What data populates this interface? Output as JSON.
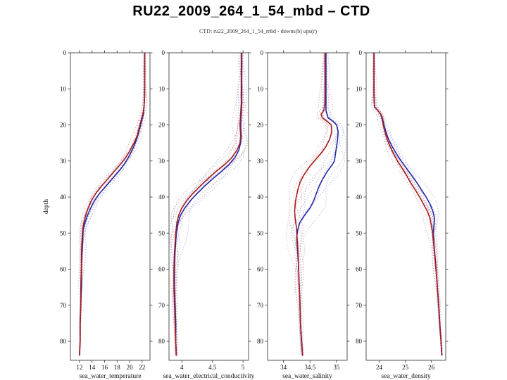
{
  "figure": {
    "title": "RU22_2009_264_1_54_mbd – CTD",
    "subtitle": "CTD: ru22_2009_264_1_54_mbd - downs(b) ups(r)"
  },
  "colors": {
    "up_red": "#a51c1c",
    "down_blue": "#2426a8",
    "ensemble_red": "#dc8f8f",
    "ensemble_blue": "#8f9fd8",
    "axis": "#444444",
    "text": "#111111"
  },
  "chart_data": {
    "type": "line",
    "title": "CTD: ru22_2009_264_1_54_mbd - downs(b) ups(r)",
    "ylabel": "depth",
    "ylim": [
      0,
      85.3
    ],
    "y_inverted": true,
    "yticks": [
      0,
      10,
      20,
      30,
      40,
      50,
      60,
      70,
      80
    ],
    "legend": [
      {
        "name": "downs",
        "color_key": "down_blue"
      },
      {
        "name": "ups",
        "color_key": "up_red"
      }
    ],
    "charts": [
      {
        "id": "temperature",
        "xlabel": "sea_water_temperature",
        "xlim": [
          10.55,
          23.25
        ],
        "xticks": [
          12,
          14,
          16,
          18,
          20,
          22
        ],
        "ensemble_spread": 0.55,
        "series": {
          "ups_r": [
            [
              0,
              22.4
            ],
            [
              6,
              22.4
            ],
            [
              12,
              22.4
            ],
            [
              15,
              22.3
            ],
            [
              17,
              22.1
            ],
            [
              19,
              21.8
            ],
            [
              21,
              21.5
            ],
            [
              23,
              21.2
            ],
            [
              25,
              20.7
            ],
            [
              27,
              20.1
            ],
            [
              29,
              19.4
            ],
            [
              31,
              18.5
            ],
            [
              33,
              17.5
            ],
            [
              35,
              16.5
            ],
            [
              37,
              15.5
            ],
            [
              39,
              14.6
            ],
            [
              41,
              13.9
            ],
            [
              43,
              13.4
            ],
            [
              45,
              13.0
            ],
            [
              47,
              12.7
            ],
            [
              49,
              12.5
            ],
            [
              52,
              12.4
            ],
            [
              56,
              12.3
            ],
            [
              60,
              12.3
            ],
            [
              65,
              12.2
            ],
            [
              70,
              12.2
            ],
            [
              75,
              12.1
            ],
            [
              80,
              12.1
            ],
            [
              84,
              12.0
            ]
          ],
          "downs_b": [
            [
              0,
              22.4
            ],
            [
              6,
              22.4
            ],
            [
              12,
              22.4
            ],
            [
              15,
              22.3
            ],
            [
              17,
              22.2
            ],
            [
              19,
              21.9
            ],
            [
              21,
              21.6
            ],
            [
              23,
              21.3
            ],
            [
              25,
              20.9
            ],
            [
              27,
              20.4
            ],
            [
              29,
              19.8
            ],
            [
              31,
              19.1
            ],
            [
              33,
              18.2
            ],
            [
              35,
              17.2
            ],
            [
              37,
              16.2
            ],
            [
              39,
              15.2
            ],
            [
              41,
              14.4
            ],
            [
              43,
              13.8
            ],
            [
              45,
              13.3
            ],
            [
              47,
              12.9
            ],
            [
              49,
              12.6
            ],
            [
              52,
              12.5
            ],
            [
              56,
              12.4
            ],
            [
              60,
              12.3
            ],
            [
              65,
              12.3
            ],
            [
              70,
              12.2
            ],
            [
              75,
              12.1
            ],
            [
              80,
              12.1
            ],
            [
              84,
              12.0
            ]
          ]
        }
      },
      {
        "id": "conductivity",
        "xlabel": "sea_water_electrical_conductivity",
        "xlim": [
          3.79,
          5.09
        ],
        "xticks": [
          4,
          4.5,
          5
        ],
        "ensemble_spread": 0.13,
        "series": {
          "ups_r": [
            [
              0,
              4.97
            ],
            [
              8,
              4.97
            ],
            [
              14,
              4.97
            ],
            [
              17,
              4.96
            ],
            [
              20,
              4.95
            ],
            [
              23,
              4.96
            ],
            [
              25,
              4.95
            ],
            [
              27,
              4.9
            ],
            [
              29,
              4.82
            ],
            [
              31,
              4.7
            ],
            [
              33,
              4.55
            ],
            [
              35,
              4.42
            ],
            [
              37,
              4.3
            ],
            [
              39,
              4.18
            ],
            [
              41,
              4.08
            ],
            [
              43,
              4.0
            ],
            [
              45,
              3.95
            ],
            [
              47,
              3.92
            ],
            [
              50,
              3.9
            ],
            [
              55,
              3.88
            ],
            [
              60,
              3.87
            ],
            [
              65,
              3.87
            ],
            [
              70,
              3.88
            ],
            [
              75,
              3.89
            ],
            [
              80,
              3.9
            ],
            [
              84,
              3.91
            ]
          ],
          "downs_b": [
            [
              0,
              4.98
            ],
            [
              8,
              4.98
            ],
            [
              14,
              4.98
            ],
            [
              17,
              4.97
            ],
            [
              20,
              4.96
            ],
            [
              23,
              4.97
            ],
            [
              25,
              4.96
            ],
            [
              27,
              4.93
            ],
            [
              29,
              4.87
            ],
            [
              31,
              4.77
            ],
            [
              33,
              4.64
            ],
            [
              35,
              4.5
            ],
            [
              37,
              4.37
            ],
            [
              39,
              4.25
            ],
            [
              41,
              4.14
            ],
            [
              43,
              4.05
            ],
            [
              45,
              3.98
            ],
            [
              47,
              3.94
            ],
            [
              50,
              3.91
            ],
            [
              55,
              3.89
            ],
            [
              60,
              3.88
            ],
            [
              65,
              3.88
            ],
            [
              70,
              3.89
            ],
            [
              75,
              3.9
            ],
            [
              80,
              3.9
            ],
            [
              84,
              3.91
            ]
          ]
        }
      },
      {
        "id": "salinity",
        "xlabel": "sea_water_salinity",
        "xlim": [
          33.7,
          35.2
        ],
        "xticks": [
          34,
          34.5,
          35
        ],
        "ensemble_spread": 0.16,
        "series": {
          "ups_r": [
            [
              0,
              34.78
            ],
            [
              8,
              34.78
            ],
            [
              14,
              34.78
            ],
            [
              16,
              34.76
            ],
            [
              17,
              34.71
            ],
            [
              18,
              34.73
            ],
            [
              19,
              34.82
            ],
            [
              20,
              34.9
            ],
            [
              22,
              34.91
            ],
            [
              24,
              34.87
            ],
            [
              26,
              34.8
            ],
            [
              28,
              34.7
            ],
            [
              30,
              34.58
            ],
            [
              32,
              34.47
            ],
            [
              34,
              34.38
            ],
            [
              36,
              34.31
            ],
            [
              38,
              34.27
            ],
            [
              40,
              34.24
            ],
            [
              42,
              34.22
            ],
            [
              44,
              34.21
            ],
            [
              46,
              34.22
            ],
            [
              48,
              34.24
            ],
            [
              50,
              34.25
            ],
            [
              54,
              34.27
            ],
            [
              58,
              34.28
            ],
            [
              62,
              34.29
            ],
            [
              66,
              34.3
            ],
            [
              70,
              34.31
            ],
            [
              75,
              34.32
            ],
            [
              80,
              34.34
            ],
            [
              84,
              34.36
            ]
          ],
          "downs_b": [
            [
              0,
              34.8
            ],
            [
              8,
              34.8
            ],
            [
              14,
              34.8
            ],
            [
              16,
              34.8
            ],
            [
              18,
              34.84
            ],
            [
              19,
              34.93
            ],
            [
              20,
              35.0
            ],
            [
              22,
              35.03
            ],
            [
              24,
              35.02
            ],
            [
              26,
              35.0
            ],
            [
              28,
              34.98
            ],
            [
              30,
              34.96
            ],
            [
              31,
              34.92
            ],
            [
              33,
              34.82
            ],
            [
              35,
              34.74
            ],
            [
              37,
              34.67
            ],
            [
              39,
              34.62
            ],
            [
              41,
              34.57
            ],
            [
              43,
              34.5
            ],
            [
              45,
              34.4
            ],
            [
              47,
              34.31
            ],
            [
              49,
              34.27
            ],
            [
              51,
              34.25
            ],
            [
              54,
              34.26
            ],
            [
              58,
              34.28
            ],
            [
              62,
              34.29
            ],
            [
              66,
              34.3
            ],
            [
              70,
              34.31
            ],
            [
              75,
              34.32
            ],
            [
              80,
              34.34
            ],
            [
              84,
              34.36
            ]
          ]
        }
      },
      {
        "id": "density",
        "xlabel": "sea_water_density",
        "xlim": [
          23.5,
          26.55
        ],
        "xticks": [
          24,
          25,
          26
        ],
        "ensemble_spread": 0.16,
        "series": {
          "ups_r": [
            [
              0,
              23.8
            ],
            [
              6,
              23.8
            ],
            [
              12,
              23.8
            ],
            [
              15,
              23.82
            ],
            [
              16,
              23.95
            ],
            [
              17,
              24.05
            ],
            [
              18,
              24.1
            ],
            [
              20,
              24.15
            ],
            [
              22,
              24.22
            ],
            [
              24,
              24.3
            ],
            [
              26,
              24.42
            ],
            [
              28,
              24.55
            ],
            [
              30,
              24.7
            ],
            [
              32,
              24.88
            ],
            [
              34,
              25.05
            ],
            [
              36,
              25.2
            ],
            [
              38,
              25.38
            ],
            [
              40,
              25.55
            ],
            [
              42,
              25.7
            ],
            [
              44,
              25.85
            ],
            [
              46,
              25.95
            ],
            [
              48,
              26.0
            ],
            [
              50,
              26.05
            ],
            [
              54,
              26.1
            ],
            [
              58,
              26.15
            ],
            [
              62,
              26.2
            ],
            [
              66,
              26.24
            ],
            [
              70,
              26.28
            ],
            [
              75,
              26.32
            ],
            [
              80,
              26.37
            ],
            [
              84,
              26.4
            ]
          ],
          "downs_b": [
            [
              0,
              23.8
            ],
            [
              6,
              23.8
            ],
            [
              12,
              23.8
            ],
            [
              15,
              23.82
            ],
            [
              16,
              23.95
            ],
            [
              17,
              24.06
            ],
            [
              18,
              24.12
            ],
            [
              20,
              24.18
            ],
            [
              22,
              24.26
            ],
            [
              24,
              24.36
            ],
            [
              26,
              24.5
            ],
            [
              28,
              24.66
            ],
            [
              30,
              24.84
            ],
            [
              32,
              25.04
            ],
            [
              34,
              25.24
            ],
            [
              36,
              25.44
            ],
            [
              38,
              25.62
            ],
            [
              40,
              25.8
            ],
            [
              42,
              25.95
            ],
            [
              44,
              26.06
            ],
            [
              46,
              26.12
            ],
            [
              48,
              26.1
            ],
            [
              50,
              26.07
            ],
            [
              54,
              26.11
            ],
            [
              58,
              26.16
            ],
            [
              62,
              26.2
            ],
            [
              66,
              26.24
            ],
            [
              70,
              26.28
            ],
            [
              75,
              26.32
            ],
            [
              80,
              26.37
            ],
            [
              84,
              26.4
            ]
          ]
        }
      }
    ]
  }
}
